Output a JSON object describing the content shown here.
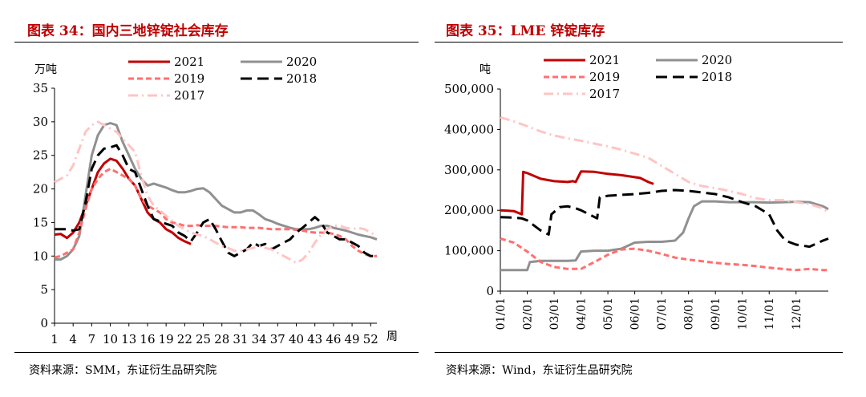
{
  "chart_data": [
    {
      "type": "line",
      "title": "图表 34：国内三地锌锭社会库存",
      "ylabel": "万吨",
      "xlabel": "周",
      "ylim": [
        0,
        35
      ],
      "xlim": [
        1,
        53
      ],
      "yticks": [
        0,
        5,
        10,
        15,
        20,
        25,
        30,
        35
      ],
      "xticks": [
        1,
        4,
        7,
        10,
        13,
        16,
        19,
        22,
        25,
        28,
        31,
        34,
        37,
        40,
        43,
        46,
        49,
        52
      ],
      "grid": false,
      "legend": "top",
      "source": "资料来源：SMM，东证衍生品研究院",
      "series": [
        {
          "name": "2021",
          "color": "#c00000",
          "dash": "solid",
          "x": [
            1,
            2,
            3,
            4,
            5,
            6,
            7,
            8,
            9,
            10,
            11,
            12,
            13,
            14,
            15,
            16,
            17,
            18,
            19,
            20,
            21,
            22,
            23
          ],
          "y": [
            13.2,
            13.3,
            12.7,
            13.5,
            15,
            17.5,
            20,
            22.5,
            23.8,
            24.5,
            24.2,
            23,
            21.5,
            20.5,
            18.5,
            16.5,
            15.5,
            15,
            14,
            13.5,
            12.7,
            12.2,
            11.8
          ]
        },
        {
          "name": "2020",
          "color": "#909090",
          "dash": "solid",
          "x": [
            1,
            2,
            3,
            4,
            5,
            6,
            7,
            8,
            9,
            10,
            11,
            12,
            13,
            14,
            15,
            16,
            17,
            18,
            19,
            20,
            21,
            22,
            23,
            24,
            25,
            26,
            27,
            28,
            29,
            30,
            31,
            32,
            33,
            34,
            35,
            36,
            37,
            38,
            39,
            40,
            41,
            42,
            43,
            44,
            45,
            46,
            47,
            48,
            49,
            50,
            51,
            52,
            53
          ],
          "y": [
            9.5,
            9.5,
            10,
            11,
            13,
            19,
            25,
            28,
            29.5,
            29.8,
            29.5,
            27,
            25,
            23,
            21.5,
            20.5,
            20.8,
            20.5,
            20.2,
            19.8,
            19.5,
            19.5,
            19.7,
            20,
            20.1,
            19.5,
            18.5,
            17.5,
            17,
            16.5,
            16.5,
            16.8,
            16.8,
            16.2,
            15.5,
            15.2,
            14.8,
            14.5,
            14.2,
            14,
            14,
            14,
            14.2,
            14.5,
            14.5,
            14.2,
            14,
            13.8,
            13.5,
            13.2,
            13,
            12.8,
            12.5
          ]
        },
        {
          "name": "2019",
          "color": "#ff6f6f",
          "dash": "dashed",
          "x": [
            1,
            2,
            3,
            4,
            5,
            6,
            7,
            8,
            9,
            10,
            11,
            12,
            13,
            14,
            15,
            16,
            17,
            18,
            19,
            20,
            21,
            22,
            23,
            24,
            25,
            26,
            27,
            28,
            29,
            30,
            31,
            32,
            33,
            34,
            35,
            36,
            37,
            38,
            39,
            40,
            41,
            42,
            43,
            44,
            45,
            46,
            47,
            48,
            49,
            50,
            51,
            52,
            53
          ],
          "y": [
            9.8,
            10,
            10.5,
            11,
            13.5,
            17,
            20,
            21.5,
            22.5,
            23,
            22.5,
            22,
            21.5,
            20.5,
            18.5,
            17.5,
            17,
            16.5,
            15.5,
            15,
            14.8,
            14.5,
            14.5,
            14.6,
            14.5,
            14.5,
            14.5,
            14.4,
            14.3,
            14.3,
            14.3,
            14.2,
            14.2,
            14.2,
            14.1,
            14,
            14,
            14,
            14,
            13.9,
            13.8,
            13.6,
            13.5,
            13.5,
            13.5,
            13.3,
            13,
            12.5,
            11.5,
            10.8,
            10.3,
            10,
            10
          ]
        },
        {
          "name": "2018",
          "color": "#000000",
          "dash": "longdash",
          "x": [
            1,
            2,
            3,
            4,
            5,
            6,
            7,
            8,
            9,
            10,
            11,
            12,
            13,
            14,
            15,
            16,
            17,
            18,
            19,
            20,
            21,
            22,
            23,
            24,
            25,
            26,
            27,
            28,
            29,
            30,
            31,
            32,
            33,
            34,
            35,
            36,
            37,
            38,
            39,
            40,
            41,
            42,
            43,
            44,
            45,
            46,
            47,
            48,
            49,
            50,
            51,
            52,
            53
          ],
          "y": [
            14,
            14,
            14,
            13.8,
            14,
            18,
            23,
            25,
            26,
            26.2,
            26.5,
            25,
            23,
            22.5,
            20,
            17.5,
            15.5,
            15.2,
            14.8,
            14.5,
            13.5,
            13,
            12.2,
            13.5,
            15,
            15.5,
            14,
            12.2,
            10.5,
            10,
            10.5,
            11,
            12,
            11.5,
            11.8,
            11,
            11.5,
            12,
            12.5,
            13.5,
            14.2,
            15,
            15.8,
            15,
            13.5,
            13,
            12.5,
            12.5,
            12,
            11.5,
            10.5,
            10,
            10
          ]
        },
        {
          "name": "2017",
          "color": "#ffc4c4",
          "dash": "dashdot",
          "x": [
            1,
            2,
            3,
            4,
            5,
            6,
            7,
            8,
            9,
            10,
            11,
            12,
            13,
            14,
            15,
            16,
            17,
            18,
            19,
            20,
            21,
            22,
            23,
            24,
            25,
            26,
            27,
            28,
            29,
            30,
            31,
            32,
            33,
            34,
            35,
            36,
            37,
            38,
            39,
            40,
            41,
            42,
            43,
            44,
            45,
            46,
            47,
            48,
            49,
            50,
            51,
            52,
            53
          ],
          "y": [
            21,
            21.5,
            22,
            23.5,
            26,
            28.5,
            29.5,
            30,
            29.5,
            29,
            28.5,
            27.5,
            26.5,
            25.5,
            22,
            19,
            17.5,
            16.8,
            16,
            15.2,
            14.5,
            14,
            13.5,
            13.2,
            13,
            12.5,
            12,
            11.5,
            11.2,
            10.8,
            10.8,
            11,
            11.2,
            11.5,
            11.2,
            11,
            10.5,
            10,
            9.5,
            9,
            9.5,
            10.5,
            12,
            13.2,
            14,
            14.5,
            14.5,
            14.2,
            14,
            14.2,
            14,
            13.5,
            13
          ]
        }
      ]
    },
    {
      "type": "line",
      "title": "图表 35：LME 锌锭库存",
      "ylabel": "吨",
      "ylim": [
        0,
        500000
      ],
      "xlim": [
        0,
        12.2
      ],
      "yticks": [
        0,
        100000,
        200000,
        300000,
        400000,
        500000
      ],
      "ytick_labels": [
        "0",
        "100,000",
        "200,000",
        "300,000",
        "400,000",
        "500,000"
      ],
      "xticks": [
        "01/01",
        "02/01",
        "03/01",
        "04/01",
        "05/01",
        "06/01",
        "07/01",
        "08/01",
        "09/01",
        "10/01",
        "11/01",
        "12/01"
      ],
      "grid": false,
      "legend": "top",
      "source": "资料来源：Wind，东证衍生品研究院",
      "series": [
        {
          "name": "2021",
          "color": "#c00000",
          "dash": "solid",
          "x": [
            0,
            0.5,
            0.8,
            0.85,
            1,
            1.5,
            2,
            2.5,
            2.7,
            2.8,
            3,
            3.5,
            3.8,
            4,
            4.5,
            5,
            5.2,
            5.5,
            5.7
          ],
          "y": [
            200000,
            198000,
            190000,
            295000,
            292000,
            278000,
            272000,
            270000,
            272000,
            270000,
            296000,
            295000,
            292000,
            290000,
            287000,
            282000,
            280000,
            270000,
            265000
          ]
        },
        {
          "name": "2020",
          "color": "#909090",
          "dash": "solid",
          "x": [
            0,
            0.5,
            1,
            1.1,
            1.5,
            2,
            2.5,
            2.8,
            3,
            3.5,
            4,
            4.5,
            5,
            5.5,
            6,
            6.5,
            6.8,
            7,
            7.2,
            7.5,
            8,
            8.5,
            9,
            9.5,
            10,
            10.5,
            11,
            11.5,
            12,
            12.2
          ],
          "y": [
            52000,
            52000,
            52000,
            72000,
            75000,
            75000,
            75000,
            76000,
            98000,
            100000,
            100000,
            105000,
            120000,
            122000,
            122000,
            125000,
            145000,
            180000,
            210000,
            222000,
            222000,
            220000,
            220000,
            220000,
            219000,
            220000,
            221000,
            220000,
            210000,
            203000
          ]
        },
        {
          "name": "2019",
          "color": "#ff6f6f",
          "dash": "dashed",
          "x": [
            0,
            0.5,
            1,
            1.5,
            2,
            2.5,
            3,
            3.5,
            4,
            4.5,
            5,
            5.5,
            6,
            6.5,
            7,
            7.5,
            8,
            8.5,
            9,
            9.5,
            10,
            10.5,
            11,
            11.5,
            12,
            12.2
          ],
          "y": [
            130000,
            120000,
            98000,
            72000,
            60000,
            55000,
            55000,
            72000,
            90000,
            103000,
            105000,
            100000,
            92000,
            83000,
            78000,
            74000,
            70000,
            67000,
            65000,
            62000,
            58000,
            55000,
            52000,
            55000,
            52000,
            52000
          ]
        },
        {
          "name": "2018",
          "color": "#000000",
          "dash": "longdash",
          "x": [
            0,
            0.5,
            0.8,
            1,
            1.5,
            1.8,
            1.9,
            2.2,
            2.5,
            2.8,
            3,
            3.3,
            3.6,
            3.7,
            4,
            4.5,
            5,
            5.5,
            6,
            6.5,
            7,
            7.5,
            8,
            8.5,
            9,
            9.5,
            10,
            10.3,
            10.6,
            11,
            11.5,
            12,
            12.2
          ],
          "y": [
            183000,
            182000,
            180000,
            175000,
            150000,
            140000,
            190000,
            208000,
            210000,
            205000,
            200000,
            190000,
            180000,
            232000,
            236000,
            238000,
            240000,
            243000,
            248000,
            250000,
            248000,
            244000,
            240000,
            232000,
            220000,
            210000,
            190000,
            150000,
            125000,
            115000,
            110000,
            125000,
            130000
          ]
        },
        {
          "name": "2017",
          "color": "#ffc4c4",
          "dash": "dashdot",
          "x": [
            0,
            0.5,
            1,
            1.5,
            2,
            2.5,
            3,
            3.5,
            4,
            4.5,
            5,
            5.5,
            6,
            6.5,
            7,
            7.5,
            8,
            8.5,
            9,
            9.5,
            10,
            10.5,
            11,
            11.5,
            12,
            12.2
          ],
          "y": [
            430000,
            420000,
            408000,
            395000,
            385000,
            378000,
            372000,
            365000,
            358000,
            350000,
            340000,
            330000,
            310000,
            290000,
            270000,
            260000,
            255000,
            248000,
            240000,
            230000,
            225000,
            225000,
            220000,
            215000,
            205000,
            195000
          ]
        }
      ]
    }
  ]
}
